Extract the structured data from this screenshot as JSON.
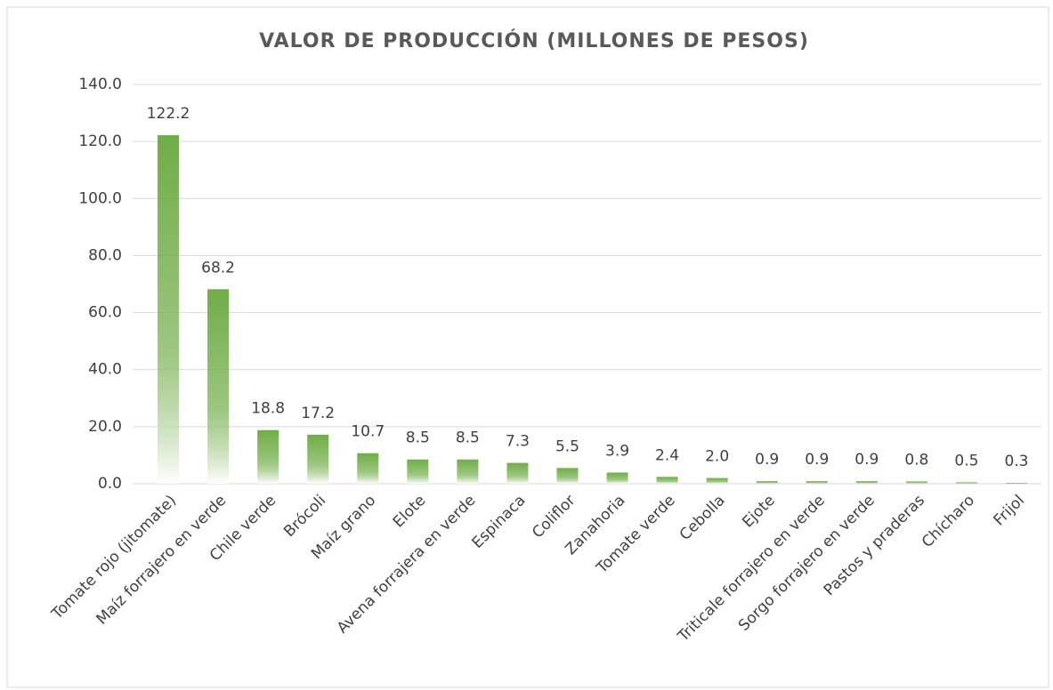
{
  "chart_data": {
    "type": "bar",
    "title": "VALOR DE PRODUCCIÓN (MILLONES DE PESOS)",
    "categories": [
      "Tomate rojo (jitomate)",
      "Maíz forrajero en verde",
      "Chile verde",
      "Brócoli",
      "Maíz grano",
      "Elote",
      "Avena forrajera en verde",
      "Espinaca",
      "Coliflor",
      "Zanahoria",
      "Tomate verde",
      "Cebolla",
      "Ejote",
      "Triticale forrajero en verde",
      "Sorgo forrajero en verde",
      "Pastos y praderas",
      "Chícharo",
      "Frijol"
    ],
    "values": [
      122.2,
      68.2,
      18.8,
      17.2,
      10.7,
      8.5,
      8.5,
      7.3,
      5.5,
      3.9,
      2.4,
      2.0,
      0.9,
      0.9,
      0.9,
      0.8,
      0.5,
      0.3
    ],
    "value_labels": [
      "122.2",
      "68.2",
      "18.8",
      "17.2",
      "10.7",
      "8.5",
      "8.5",
      "7.3",
      "5.5",
      "3.9",
      "2.4",
      "2.0",
      "0.9",
      "0.9",
      "0.9",
      "0.8",
      "0.5",
      "0.3"
    ],
    "color": "#70ad47",
    "ylim": [
      0,
      140
    ],
    "yticks": [
      {
        "value": 0,
        "label": "0.0"
      },
      {
        "value": 20,
        "label": "20.0"
      },
      {
        "value": 40,
        "label": "40.0"
      },
      {
        "value": 60,
        "label": "60.0"
      },
      {
        "value": 80,
        "label": "80.0"
      },
      {
        "value": 100,
        "label": "100.0"
      },
      {
        "value": 120,
        "label": "120.0"
      },
      {
        "value": 140,
        "label": "140.0"
      }
    ],
    "grid": true
  }
}
